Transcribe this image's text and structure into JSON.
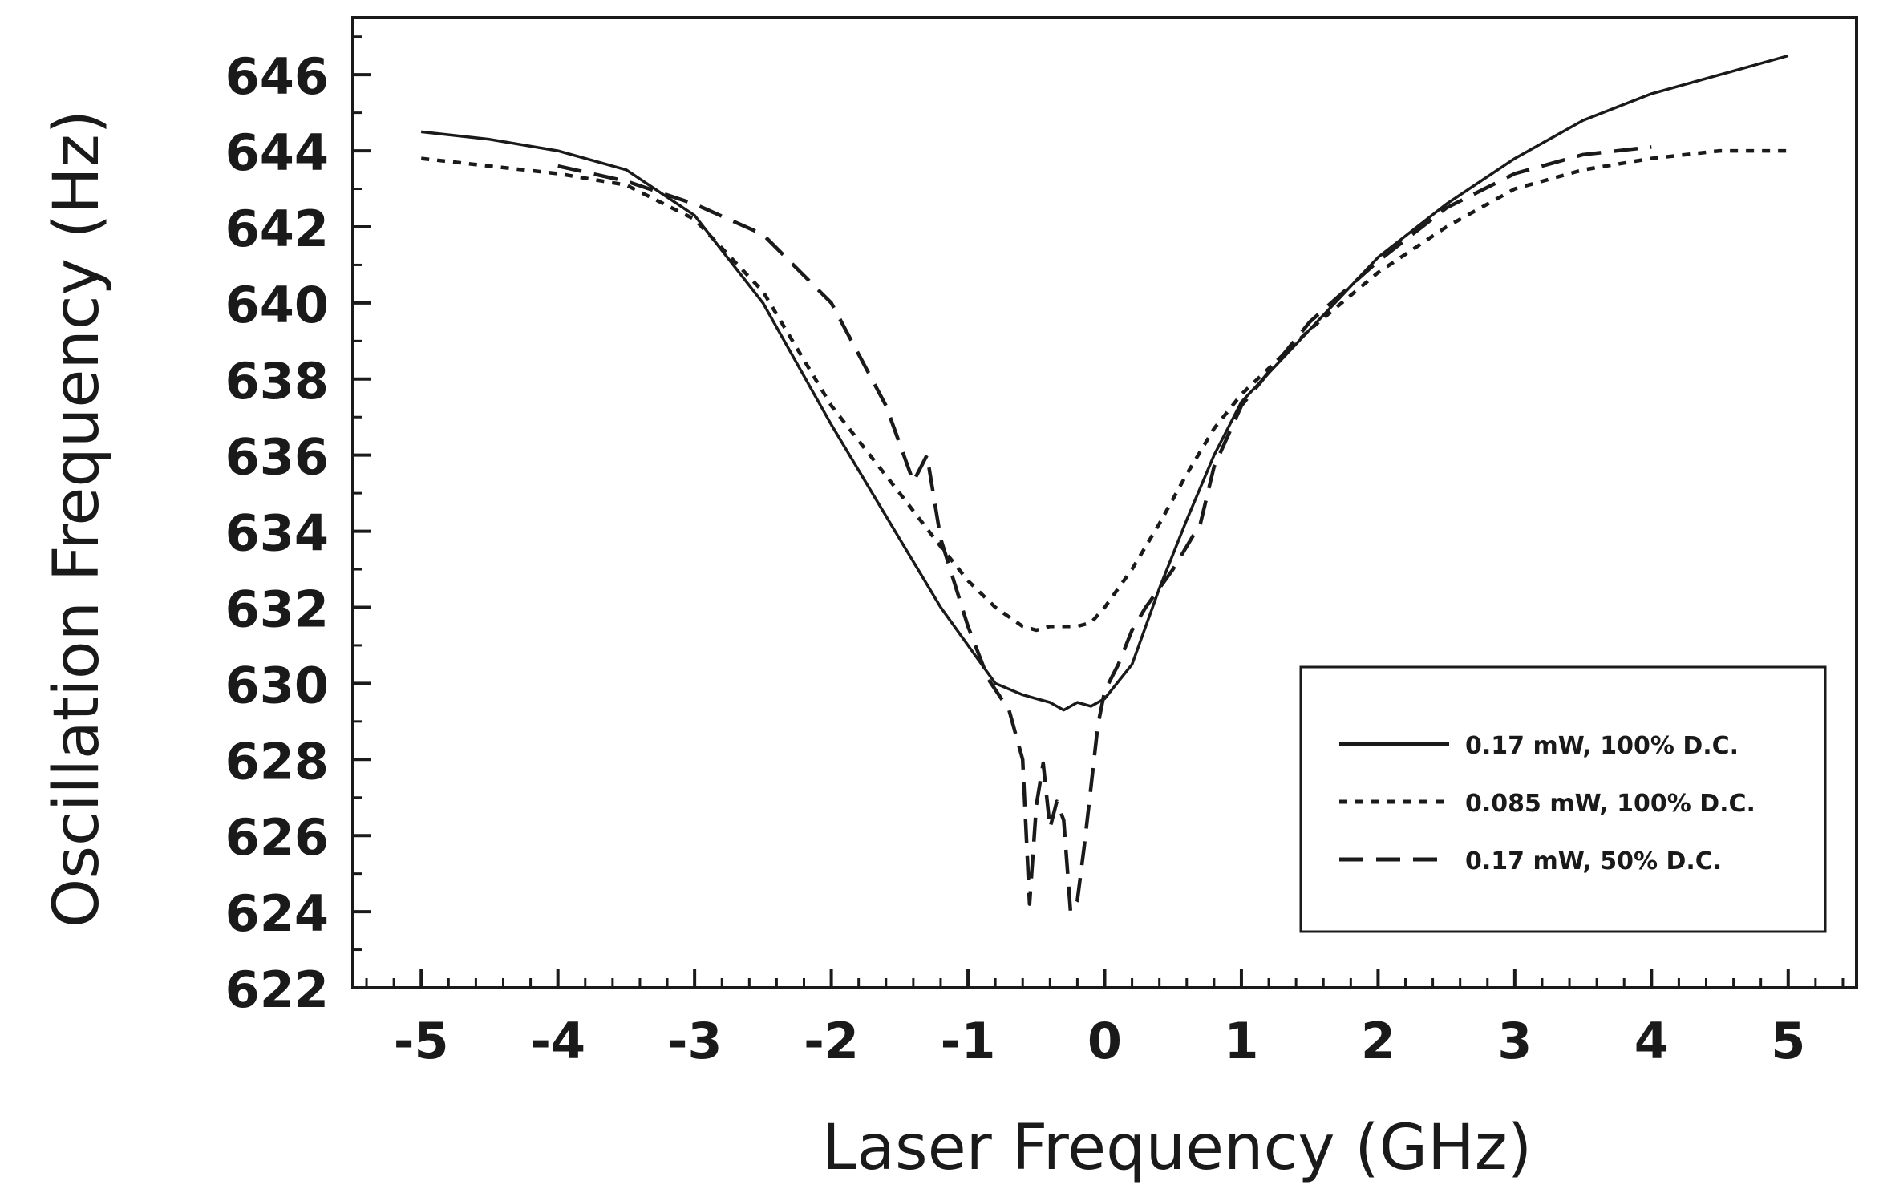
{
  "chart_data": {
    "type": "line",
    "title": "",
    "xlabel": "Laser Frequency (GHz)",
    "ylabel": "Oscillation Frequency (Hz)",
    "xlim": [
      -5.5,
      5.5
    ],
    "ylim": [
      622,
      647.5
    ],
    "x_ticks": [
      -5,
      -4,
      -3,
      -2,
      -1,
      0,
      1,
      2,
      3,
      4,
      5
    ],
    "x_tick_labels": [
      "-5",
      "-4",
      "-3",
      "-2",
      "-1",
      "0",
      "1",
      "2",
      "3",
      "4",
      "5"
    ],
    "y_ticks": [
      622,
      624,
      626,
      628,
      630,
      632,
      634,
      636,
      638,
      640,
      642,
      644,
      646
    ],
    "y_tick_labels": [
      "622",
      "624",
      "626",
      "628",
      "630",
      "632",
      "634",
      "636",
      "638",
      "640",
      "642",
      "644",
      "646"
    ],
    "grid": false,
    "legend_position": "lower-right",
    "series": [
      {
        "name": "0.17 mW, 100% D.C.",
        "style": "solid",
        "x": [
          -5,
          -4.5,
          -4,
          -3.5,
          -3,
          -2.5,
          -2,
          -1.5,
          -1.2,
          -1,
          -0.8,
          -0.6,
          -0.5,
          -0.4,
          -0.3,
          -0.2,
          -0.1,
          0,
          0.2,
          0.4,
          0.6,
          0.8,
          1,
          1.5,
          2,
          2.5,
          3,
          3.5,
          4,
          4.5,
          5
        ],
        "y": [
          644.5,
          644.3,
          644.0,
          643.5,
          642.3,
          640.0,
          636.8,
          633.8,
          632.0,
          631.0,
          630.0,
          629.7,
          629.6,
          629.5,
          629.3,
          629.5,
          629.4,
          629.6,
          630.5,
          632.5,
          634.3,
          636.0,
          637.4,
          639.3,
          641.2,
          642.6,
          643.8,
          644.8,
          645.5,
          646.0,
          646.5
        ]
      },
      {
        "name": "0.085 mW, 100% D.C.",
        "style": "dotted",
        "x": [
          -5,
          -4.5,
          -4,
          -3.5,
          -3,
          -2.5,
          -2,
          -1.5,
          -1.2,
          -1,
          -0.8,
          -0.6,
          -0.5,
          -0.4,
          -0.3,
          -0.2,
          -0.1,
          0,
          0.2,
          0.4,
          0.6,
          0.8,
          1,
          1.5,
          2,
          2.5,
          3,
          3.5,
          4,
          4.5,
          5
        ],
        "y": [
          643.8,
          643.6,
          643.4,
          643.1,
          642.2,
          640.3,
          637.3,
          635.0,
          633.6,
          632.7,
          632.0,
          631.5,
          631.4,
          631.5,
          631.5,
          631.5,
          631.6,
          632.0,
          633.0,
          634.2,
          635.5,
          636.7,
          637.6,
          639.3,
          640.8,
          642.0,
          643.0,
          643.5,
          643.8,
          644.0,
          644.0
        ]
      },
      {
        "name": "0.17 mW, 50% D.C.",
        "style": "dashed",
        "x": [
          -4,
          -3.5,
          -3,
          -2.5,
          -2,
          -1.6,
          -1.4,
          -1.3,
          -1.2,
          -1.0,
          -0.85,
          -0.7,
          -0.6,
          -0.55,
          -0.5,
          -0.45,
          -0.4,
          -0.35,
          -0.3,
          -0.25,
          -0.2,
          -0.15,
          -0.1,
          -0.05,
          0,
          0.1,
          0.2,
          0.3,
          0.5,
          0.7,
          0.8,
          1.0,
          1.5,
          2,
          2.5,
          3,
          3.5,
          4
        ],
        "y": [
          643.6,
          643.2,
          642.6,
          641.8,
          640.0,
          637.3,
          635.3,
          636.0,
          633.8,
          631.5,
          630.1,
          629.3,
          628.0,
          624.2,
          626.8,
          627.9,
          626.2,
          626.9,
          626.4,
          624.0,
          624.3,
          625.7,
          627.3,
          628.9,
          629.8,
          630.5,
          631.4,
          632.0,
          633.0,
          634.2,
          635.7,
          637.3,
          639.5,
          641.1,
          642.5,
          643.4,
          643.9,
          644.1
        ]
      }
    ]
  }
}
